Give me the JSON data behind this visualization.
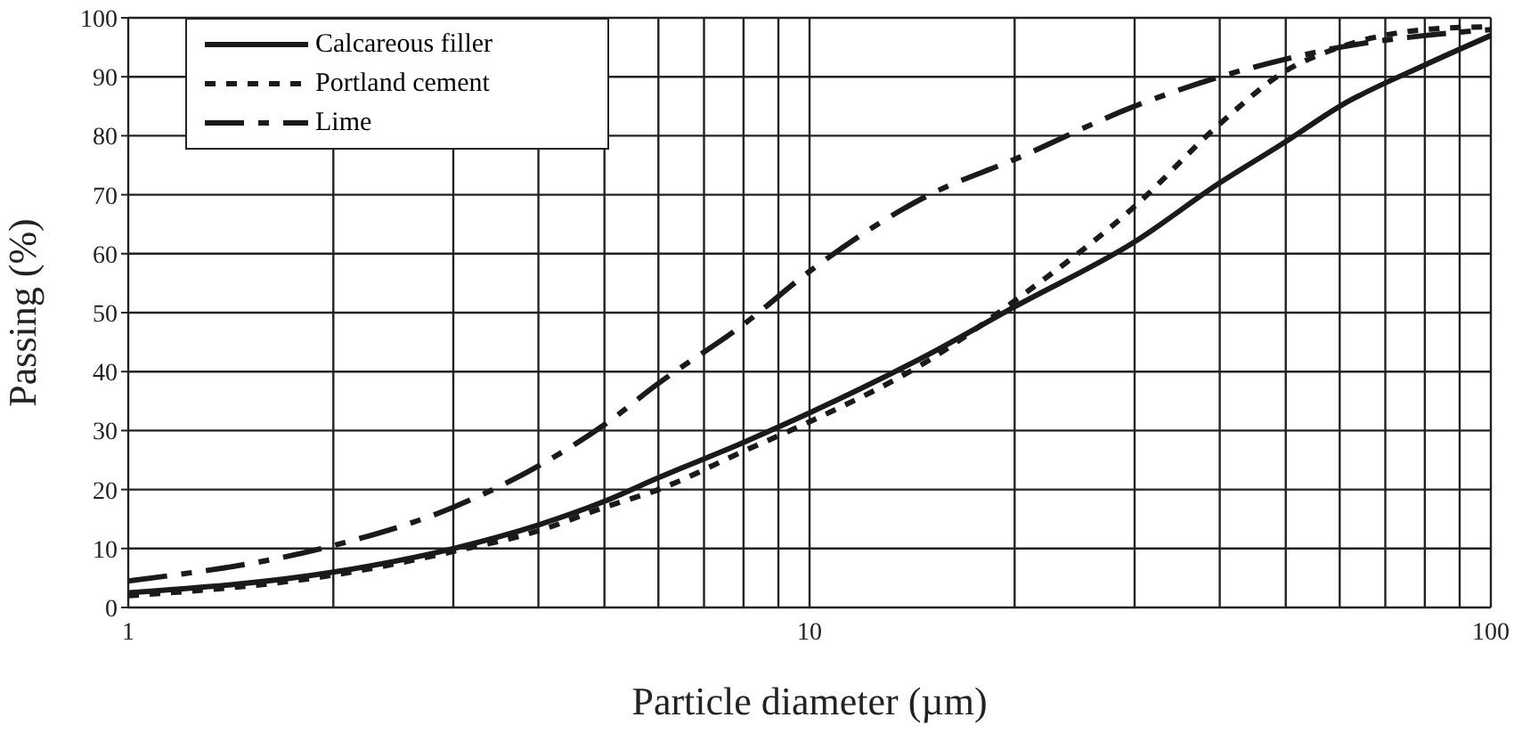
{
  "chart_data": {
    "type": "line",
    "xlabel": "Particle diameter (µm)",
    "ylabel": "Passing (%)",
    "log": "x",
    "x": [
      1,
      2,
      3,
      4,
      5,
      6,
      8,
      10,
      15,
      20,
      30,
      40,
      50,
      60,
      80,
      100
    ],
    "xlim": [
      1,
      100
    ],
    "xticks": [
      1,
      10,
      100
    ],
    "ylim": [
      0,
      100
    ],
    "yticks": [
      0,
      10,
      20,
      30,
      40,
      50,
      60,
      70,
      80,
      90,
      100
    ],
    "grid": true,
    "legend": "top left",
    "marker": "none",
    "series": [
      {
        "name": "Calcareous filler",
        "color": "#1a1a1a",
        "line_style": "solid",
        "values": [
          2.5,
          6,
          10,
          14,
          18,
          22,
          28,
          33,
          43,
          51,
          62,
          72,
          79,
          85,
          92,
          97
        ]
      },
      {
        "name": "Portland cement",
        "color": "#1a1a1a",
        "line_style": "dotted",
        "values": [
          2,
          5.5,
          9.5,
          13,
          17,
          20,
          26.5,
          31.5,
          42,
          52,
          68,
          82,
          91,
          95,
          98,
          98.5
        ]
      },
      {
        "name": "Lime",
        "color": "#1a1a1a",
        "line_style": "dashed",
        "values": [
          4.5,
          10.5,
          17,
          24,
          31,
          38,
          48,
          57,
          70,
          76,
          85,
          90,
          93,
          95,
          97,
          98
        ]
      }
    ]
  }
}
